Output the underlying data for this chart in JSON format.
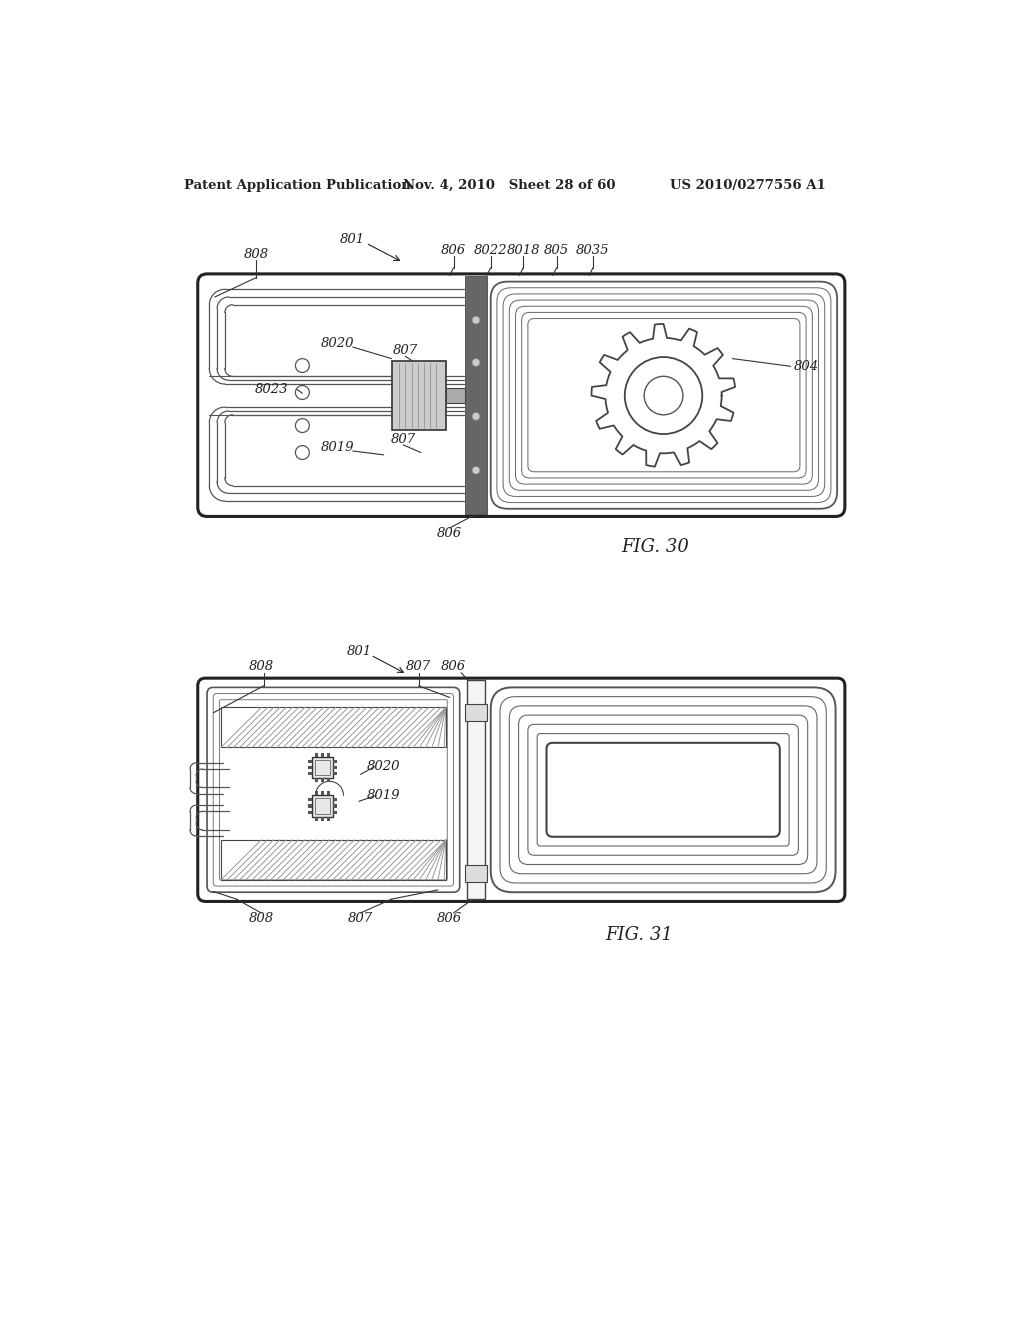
{
  "bg_color": "#ffffff",
  "header_left": "Patent Application Publication",
  "header_mid": "Nov. 4, 2010   Sheet 28 of 60",
  "header_right": "US 2010/0277556 A1",
  "fig30_label": "FIG. 30",
  "fig31_label": "FIG. 31",
  "lc": "#222222"
}
